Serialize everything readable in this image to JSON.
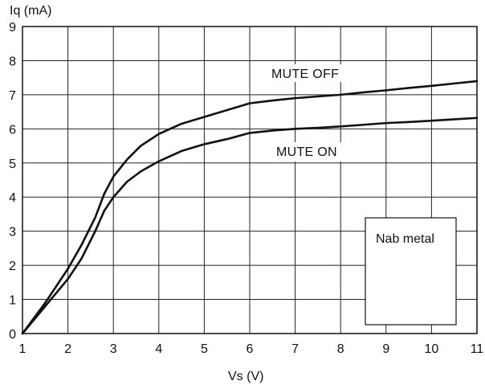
{
  "chart_data": {
    "type": "line",
    "title": "",
    "xlabel": "Vs (V)",
    "ylabel": "Iq (mA)",
    "xlim": [
      1,
      11
    ],
    "ylim": [
      0,
      9
    ],
    "xticks": [
      1,
      2,
      3,
      4,
      5,
      6,
      7,
      8,
      9,
      10,
      11
    ],
    "yticks": [
      0,
      1,
      2,
      3,
      4,
      5,
      6,
      7,
      8,
      9
    ],
    "grid": true,
    "line_color": "#111111",
    "series": [
      {
        "name": "MUTE OFF",
        "x": [
          1,
          1.5,
          2,
          2.3,
          2.6,
          2.8,
          3,
          3.3,
          3.6,
          4,
          4.5,
          5,
          5.5,
          6,
          6.5,
          7,
          7.5,
          8,
          8.5,
          9,
          9.5,
          10,
          10.5,
          11
        ],
        "y": [
          0,
          0.9,
          1.9,
          2.6,
          3.4,
          4.1,
          4.6,
          5.1,
          5.5,
          5.85,
          6.15,
          6.35,
          6.55,
          6.75,
          6.83,
          6.9,
          6.95,
          7.0,
          7.07,
          7.13,
          7.2,
          7.26,
          7.33,
          7.4
        ]
      },
      {
        "name": "MUTE ON",
        "x": [
          1,
          1.5,
          2,
          2.3,
          2.6,
          2.8,
          3,
          3.3,
          3.6,
          4,
          4.5,
          5,
          5.5,
          6,
          6.5,
          7,
          7.5,
          8,
          8.5,
          9,
          9.5,
          10,
          10.5,
          11
        ],
        "y": [
          0,
          0.8,
          1.6,
          2.2,
          3.0,
          3.6,
          4.0,
          4.45,
          4.75,
          5.05,
          5.35,
          5.55,
          5.7,
          5.88,
          5.95,
          6.0,
          6.03,
          6.07,
          6.12,
          6.17,
          6.2,
          6.24,
          6.28,
          6.32
        ]
      }
    ],
    "annotations": [
      {
        "text": "MUTE OFF",
        "series": "MUTE OFF"
      },
      {
        "text": "MUTE ON",
        "series": "MUTE ON"
      }
    ],
    "legend_box": {
      "text": "Nab metal",
      "position": "bottom-right"
    }
  }
}
